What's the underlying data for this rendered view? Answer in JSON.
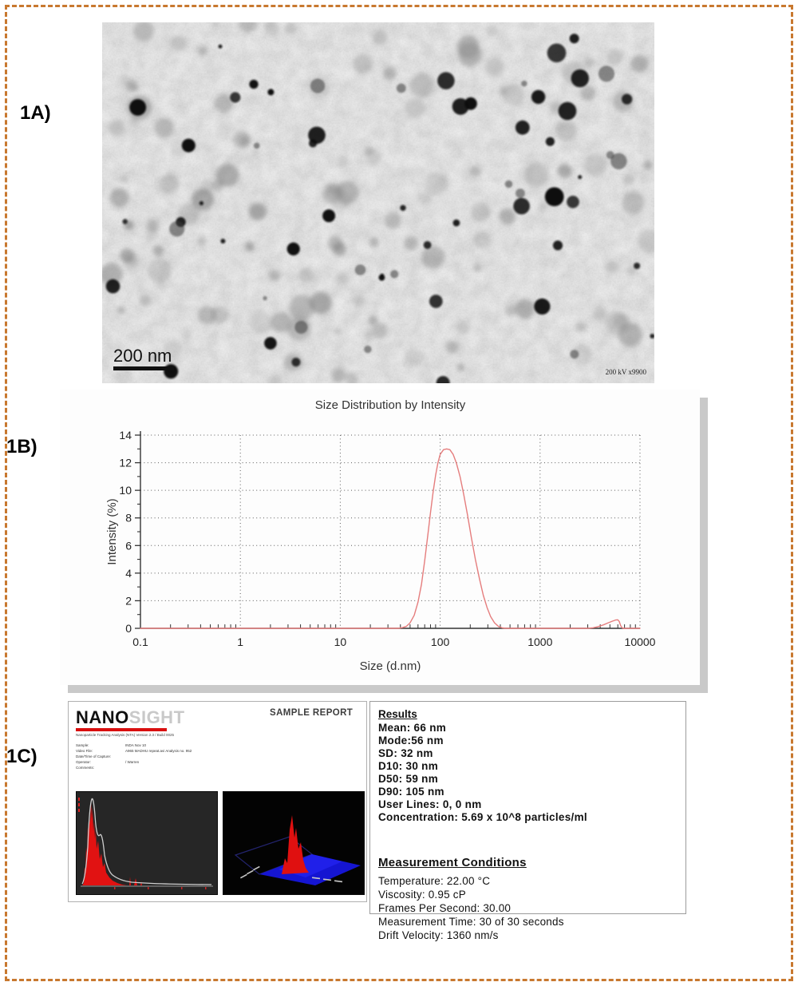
{
  "figure": {
    "panel_a_label": "1A)",
    "panel_b_label": "1B)",
    "panel_c_label": "1C)"
  },
  "tem": {
    "scale_bar_label": "200 nm",
    "stamp": "200 kV x9900"
  },
  "chart_data": {
    "type": "line",
    "title": "Size Distribution by Intensity",
    "xlabel": "Size (d.nm)",
    "ylabel": "Intensity (%)",
    "x_scale": "log",
    "xlim": [
      0.1,
      10000
    ],
    "ylim": [
      0,
      14
    ],
    "x_ticks": [
      "0.1",
      "1",
      "10",
      "100",
      "1000",
      "10000"
    ],
    "y_ticks": [
      0,
      2,
      4,
      6,
      8,
      10,
      12,
      14
    ],
    "grid": "dotted",
    "legend": "none",
    "series": [
      {
        "name": "Intensity",
        "color": "#e57d7d",
        "points": [
          [
            0.1,
            0
          ],
          [
            0.3,
            0
          ],
          [
            1,
            0
          ],
          [
            3,
            0
          ],
          [
            10,
            0
          ],
          [
            20,
            0
          ],
          [
            30,
            0
          ],
          [
            38,
            0
          ],
          [
            42,
            0.05
          ],
          [
            46,
            0.15
          ],
          [
            50,
            0.4
          ],
          [
            55,
            0.95
          ],
          [
            60,
            1.9
          ],
          [
            65,
            3.2
          ],
          [
            70,
            4.9
          ],
          [
            75,
            6.7
          ],
          [
            80,
            8.4
          ],
          [
            85,
            9.9
          ],
          [
            90,
            11.1
          ],
          [
            95,
            12.0
          ],
          [
            100,
            12.6
          ],
          [
            108,
            12.95
          ],
          [
            116,
            13.0
          ],
          [
            125,
            12.95
          ],
          [
            135,
            12.6
          ],
          [
            145,
            12.0
          ],
          [
            158,
            11.0
          ],
          [
            172,
            9.7
          ],
          [
            188,
            8.2
          ],
          [
            205,
            6.6
          ],
          [
            225,
            5.0
          ],
          [
            247,
            3.6
          ],
          [
            270,
            2.4
          ],
          [
            295,
            1.5
          ],
          [
            320,
            0.85
          ],
          [
            350,
            0.4
          ],
          [
            385,
            0.13
          ],
          [
            420,
            0.03
          ],
          [
            460,
            0
          ],
          [
            600,
            0
          ],
          [
            1000,
            0
          ],
          [
            2000,
            0
          ],
          [
            3000,
            0
          ],
          [
            3400,
            0.04
          ],
          [
            3800,
            0.12
          ],
          [
            4300,
            0.25
          ],
          [
            4800,
            0.4
          ],
          [
            5300,
            0.52
          ],
          [
            5700,
            0.6
          ],
          [
            6000,
            0.62
          ],
          [
            6200,
            0.5
          ],
          [
            6400,
            0.2
          ],
          [
            6600,
            0.05
          ],
          [
            6800,
            0
          ],
          [
            8000,
            0
          ],
          [
            10000,
            0
          ]
        ]
      }
    ]
  },
  "nanosight": {
    "logo_primary": "NANO",
    "logo_secondary": "SIGHT",
    "report_title": "SAMPLE REPORT",
    "subtitle": "Nanoparticle Tracking Analysis (NTA) Version 2.3 / Build 0025",
    "meta": [
      {
        "label": "Sample:",
        "value": "INDA Nov 10"
      },
      {
        "label": "Video File:",
        "value": "A965 MADHU repeat.avi   Analysis no. 952"
      },
      {
        "label": "Date/Time of Capture:",
        "value": ""
      },
      {
        "label": "Operator:",
        "value": "/ Warren"
      },
      {
        "label": "Comments:",
        "value": ""
      }
    ],
    "results": {
      "heading": "Results",
      "lines": [
        "Mean: 66 nm",
        "Mode:56 nm",
        "SD: 32 nm",
        "D10: 30 nm",
        "D50: 59 nm",
        "D90: 105 nm",
        "User Lines: 0, 0 nm",
        "Concentration: 5.69 x 10^8 particles/ml"
      ]
    },
    "conditions": {
      "heading": "Measurement Conditions",
      "lines": [
        "Temperature: 22.00 °C",
        "Viscosity: 0.95 cP",
        "Frames Per Second: 30.00",
        "Measurement Time: 30 of 30 seconds",
        "Drift Velocity: 1360 nm/s"
      ]
    }
  },
  "colors": {
    "frame_border": "#c8782f",
    "chart_line": "#e57d7d",
    "panel_shadow": "#c9c9c9",
    "logo_red": "#d90f0f",
    "thumb_red": "#e11212",
    "thumb_blue": "#1515d2"
  }
}
